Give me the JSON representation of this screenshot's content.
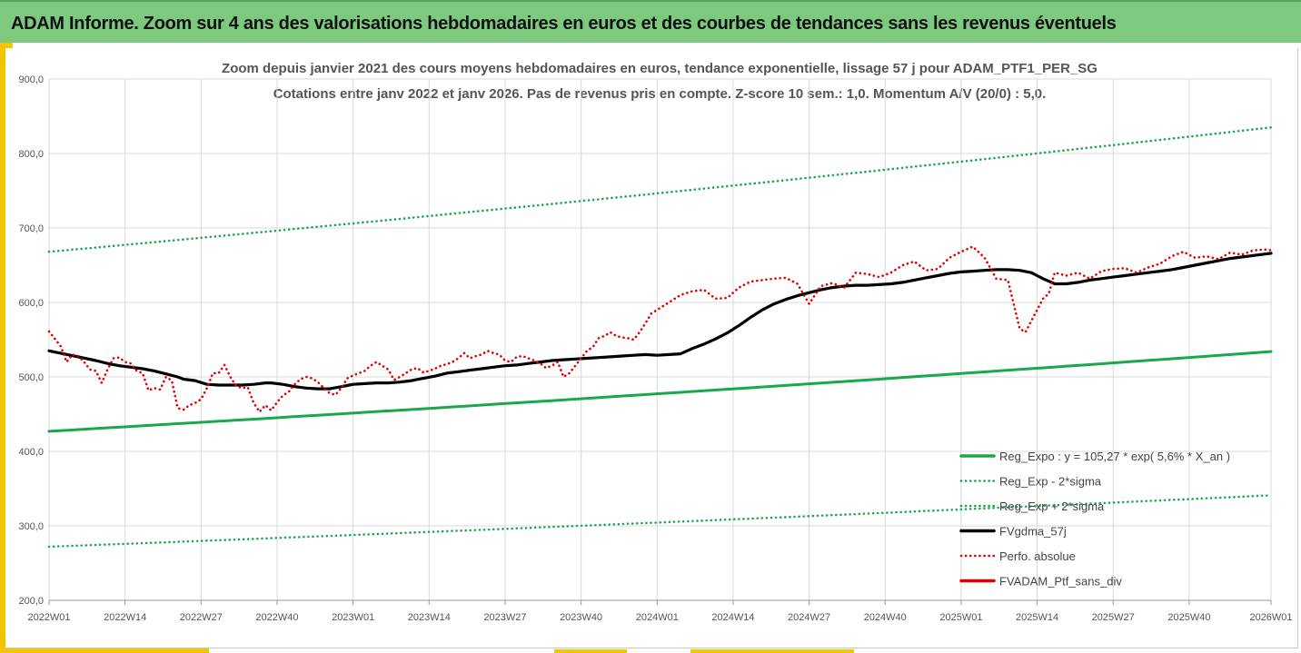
{
  "header": {
    "title": "ADAM Informe. Zoom sur 4 ans des valorisations hebdomadaires en euros et des courbes de tendances sans les revenus éventuels"
  },
  "colors": {
    "banner": "#7dc97f",
    "accent_yellow": "#f2c500",
    "reg_expo": "#1aa84a",
    "band": "#1aa84a",
    "fvgdma": "#000000",
    "perfo": "#e00000",
    "fvadam": "#e00000",
    "grid": "#d9d9d9"
  },
  "chart_data": {
    "type": "line",
    "title_lines": [
      "Zoom depuis janvier 2021 des cours moyens hebdomadaires  en euros, tendance exponentielle, lissage 57 j pour ADAM_PTF1_PER_SG",
      "Cotations entre janv 2022 et janv 2026. Pas de revenus pris en compte. Z-score 10 sem.: 1,0. Momentum A/V (20/0) : 5,0."
    ],
    "ylim": [
      200,
      900
    ],
    "y_ticks": [
      "200,0",
      "300,0",
      "400,0",
      "500,0",
      "600,0",
      "700,0",
      "800,0",
      "900,0"
    ],
    "y_tick_values": [
      200,
      300,
      400,
      500,
      600,
      700,
      800,
      900
    ],
    "x_range_weeks": [
      0,
      209
    ],
    "x_ticks": [
      "2022W01",
      "2022W14",
      "2022W27",
      "2022W40",
      "2023W01",
      "2023W14",
      "2023W27",
      "2023W40",
      "2024W01",
      "2024W14",
      "2024W27",
      "2024W40",
      "2025W01",
      "2025W14",
      "2025W27",
      "2025W40",
      "2026W01"
    ],
    "x_tick_weeks": [
      0,
      13,
      26,
      39,
      52,
      65,
      78,
      91,
      104,
      117,
      130,
      143,
      156,
      169,
      182,
      195,
      209
    ],
    "legend": [
      {
        "label": "Reg_Expo : y = 105,27 * exp( 5,6% *  X_an )",
        "style": "solid",
        "color": "#1aa84a"
      },
      {
        "label": "Reg_Exp - 2*sigma",
        "style": "dotted",
        "color": "#1aa84a"
      },
      {
        "label": "Reg_Exp + 2*sigma",
        "style": "dotted",
        "color": "#1aa84a"
      },
      {
        "label": "FVgdma_57j",
        "style": "solid",
        "color": "#000000"
      },
      {
        "label": "Perfo. absolue",
        "style": "dotted",
        "color": "#e00000"
      },
      {
        "label": "FVADAM_Ptf_sans_div",
        "style": "solid",
        "color": "#e00000"
      }
    ],
    "series": [
      {
        "name": "Reg_Expo : y = 105,27 * exp( 5,6% *  X_an )",
        "x": [
          0,
          209
        ],
        "y_exp": {
          "start": 427,
          "end": 534
        }
      },
      {
        "name": "Reg_Exp - 2*sigma",
        "x": [
          0,
          209
        ],
        "y_exp": {
          "start": 272,
          "end": 341
        }
      },
      {
        "name": "Reg_Exp + 2*sigma",
        "x": [
          0,
          209
        ],
        "y_exp": {
          "start": 668,
          "end": 835
        }
      },
      {
        "name": "FVgdma_57j",
        "x": [
          0,
          5,
          8,
          10,
          12,
          14,
          16,
          18,
          20,
          22,
          23,
          25,
          27,
          29,
          31,
          33,
          35,
          37,
          38,
          40,
          42,
          44,
          46,
          48,
          50,
          52,
          54,
          56,
          58,
          60,
          62,
          64,
          66,
          68,
          70,
          72,
          74,
          76,
          78,
          80,
          82,
          84,
          86,
          88,
          90,
          92,
          94,
          96,
          98,
          100,
          102,
          104,
          106,
          108,
          110,
          112,
          114,
          116,
          118,
          120,
          122,
          124,
          126,
          128,
          130,
          132,
          134,
          136,
          138,
          140,
          142,
          144,
          146,
          148,
          150,
          152,
          154,
          156,
          158,
          160,
          162,
          164,
          166,
          168,
          170,
          172,
          174,
          176,
          178,
          180,
          182,
          184,
          186,
          188,
          190,
          192,
          194,
          196,
          198,
          200,
          202,
          204,
          206,
          209
        ],
        "y": [
          535,
          527,
          522,
          518,
          515,
          513,
          511,
          508,
          504,
          500,
          497,
          495,
          490,
          489,
          489,
          489,
          490,
          492,
          492,
          490,
          487,
          485,
          484,
          484,
          487,
          490,
          491,
          492,
          492,
          493,
          495,
          498,
          501,
          505,
          507,
          509,
          511,
          513,
          515,
          516,
          518,
          520,
          522,
          523,
          524,
          525,
          526,
          527,
          528,
          529,
          530,
          529,
          530,
          531,
          538,
          544,
          551,
          559,
          569,
          580,
          590,
          598,
          604,
          609,
          613,
          617,
          620,
          622,
          623,
          623,
          624,
          625,
          627,
          630,
          633,
          636,
          639,
          641,
          642,
          643,
          644,
          644,
          643,
          640,
          632,
          625,
          625,
          627,
          630,
          632,
          634,
          636,
          638,
          640,
          642,
          644,
          647,
          650,
          653,
          656,
          659,
          661,
          663,
          666
        ]
      },
      {
        "name": "FVADAM_Ptf_sans_div",
        "x": [
          0,
          2,
          3,
          4,
          5,
          6,
          7,
          8,
          9,
          10,
          11,
          12,
          13,
          14,
          15,
          16,
          17,
          18,
          19,
          20,
          21,
          22,
          23,
          24,
          25,
          26,
          27,
          28,
          29,
          30,
          31,
          32,
          33,
          34,
          35,
          36,
          37,
          38,
          39,
          40,
          41,
          42,
          43,
          44,
          45,
          46,
          47,
          48,
          49,
          50,
          51,
          52,
          53,
          54,
          55,
          56,
          57,
          58,
          59,
          60,
          61,
          62,
          63,
          64,
          65,
          66,
          67,
          68,
          69,
          70,
          71,
          72,
          73,
          74,
          75,
          76,
          77,
          78,
          79,
          80,
          81,
          82,
          83,
          84,
          85,
          86,
          87,
          88,
          89,
          90,
          91,
          92,
          93,
          94,
          95,
          96,
          97,
          98,
          99,
          100,
          101,
          102,
          103,
          104,
          106,
          108,
          110,
          112,
          114,
          116,
          118,
          120,
          122,
          124,
          126,
          128,
          130,
          132,
          134,
          136,
          138,
          140,
          142,
          144,
          146,
          148,
          150,
          152,
          154,
          156,
          158,
          160,
          162,
          164,
          166,
          167,
          168,
          169,
          170,
          171,
          172,
          174,
          176,
          178,
          180,
          182,
          184,
          186,
          188,
          190,
          192,
          194,
          196,
          198,
          200,
          202,
          204,
          206,
          208,
          209
        ],
        "y": [
          561,
          541,
          520,
          530,
          528,
          520,
          510,
          508,
          492,
          510,
          525,
          526,
          520,
          518,
          508,
          505,
          482,
          485,
          483,
          500,
          495,
          458,
          456,
          462,
          465,
          470,
          485,
          505,
          505,
          516,
          500,
          488,
          485,
          486,
          465,
          453,
          462,
          455,
          466,
          475,
          480,
          490,
          497,
          500,
          498,
          493,
          485,
          478,
          476,
          485,
          498,
          502,
          505,
          508,
          515,
          520,
          515,
          510,
          496,
          500,
          505,
          510,
          512,
          506,
          508,
          511,
          515,
          517,
          520,
          525,
          532,
          525,
          528,
          530,
          535,
          532,
          530,
          522,
          520,
          527,
          528,
          525,
          522,
          518,
          512,
          515,
          520,
          500,
          505,
          515,
          525,
          535,
          540,
          552,
          555,
          560,
          555,
          553,
          552,
          550,
          560,
          572,
          585,
          590,
          600,
          610,
          615,
          617,
          605,
          606,
          620,
          628,
          630,
          632,
          633,
          625,
          598,
          622,
          626,
          620,
          640,
          638,
          634,
          640,
          650,
          655,
          643,
          645,
          660,
          668,
          675,
          660,
          632,
          630,
          565,
          560,
          575,
          590,
          605,
          612,
          640,
          636,
          640,
          632,
          642,
          645,
          646,
          640,
          647,
          652,
          662,
          668,
          660,
          662,
          658,
          667,
          664,
          670,
          671,
          670
        ]
      }
    ]
  }
}
